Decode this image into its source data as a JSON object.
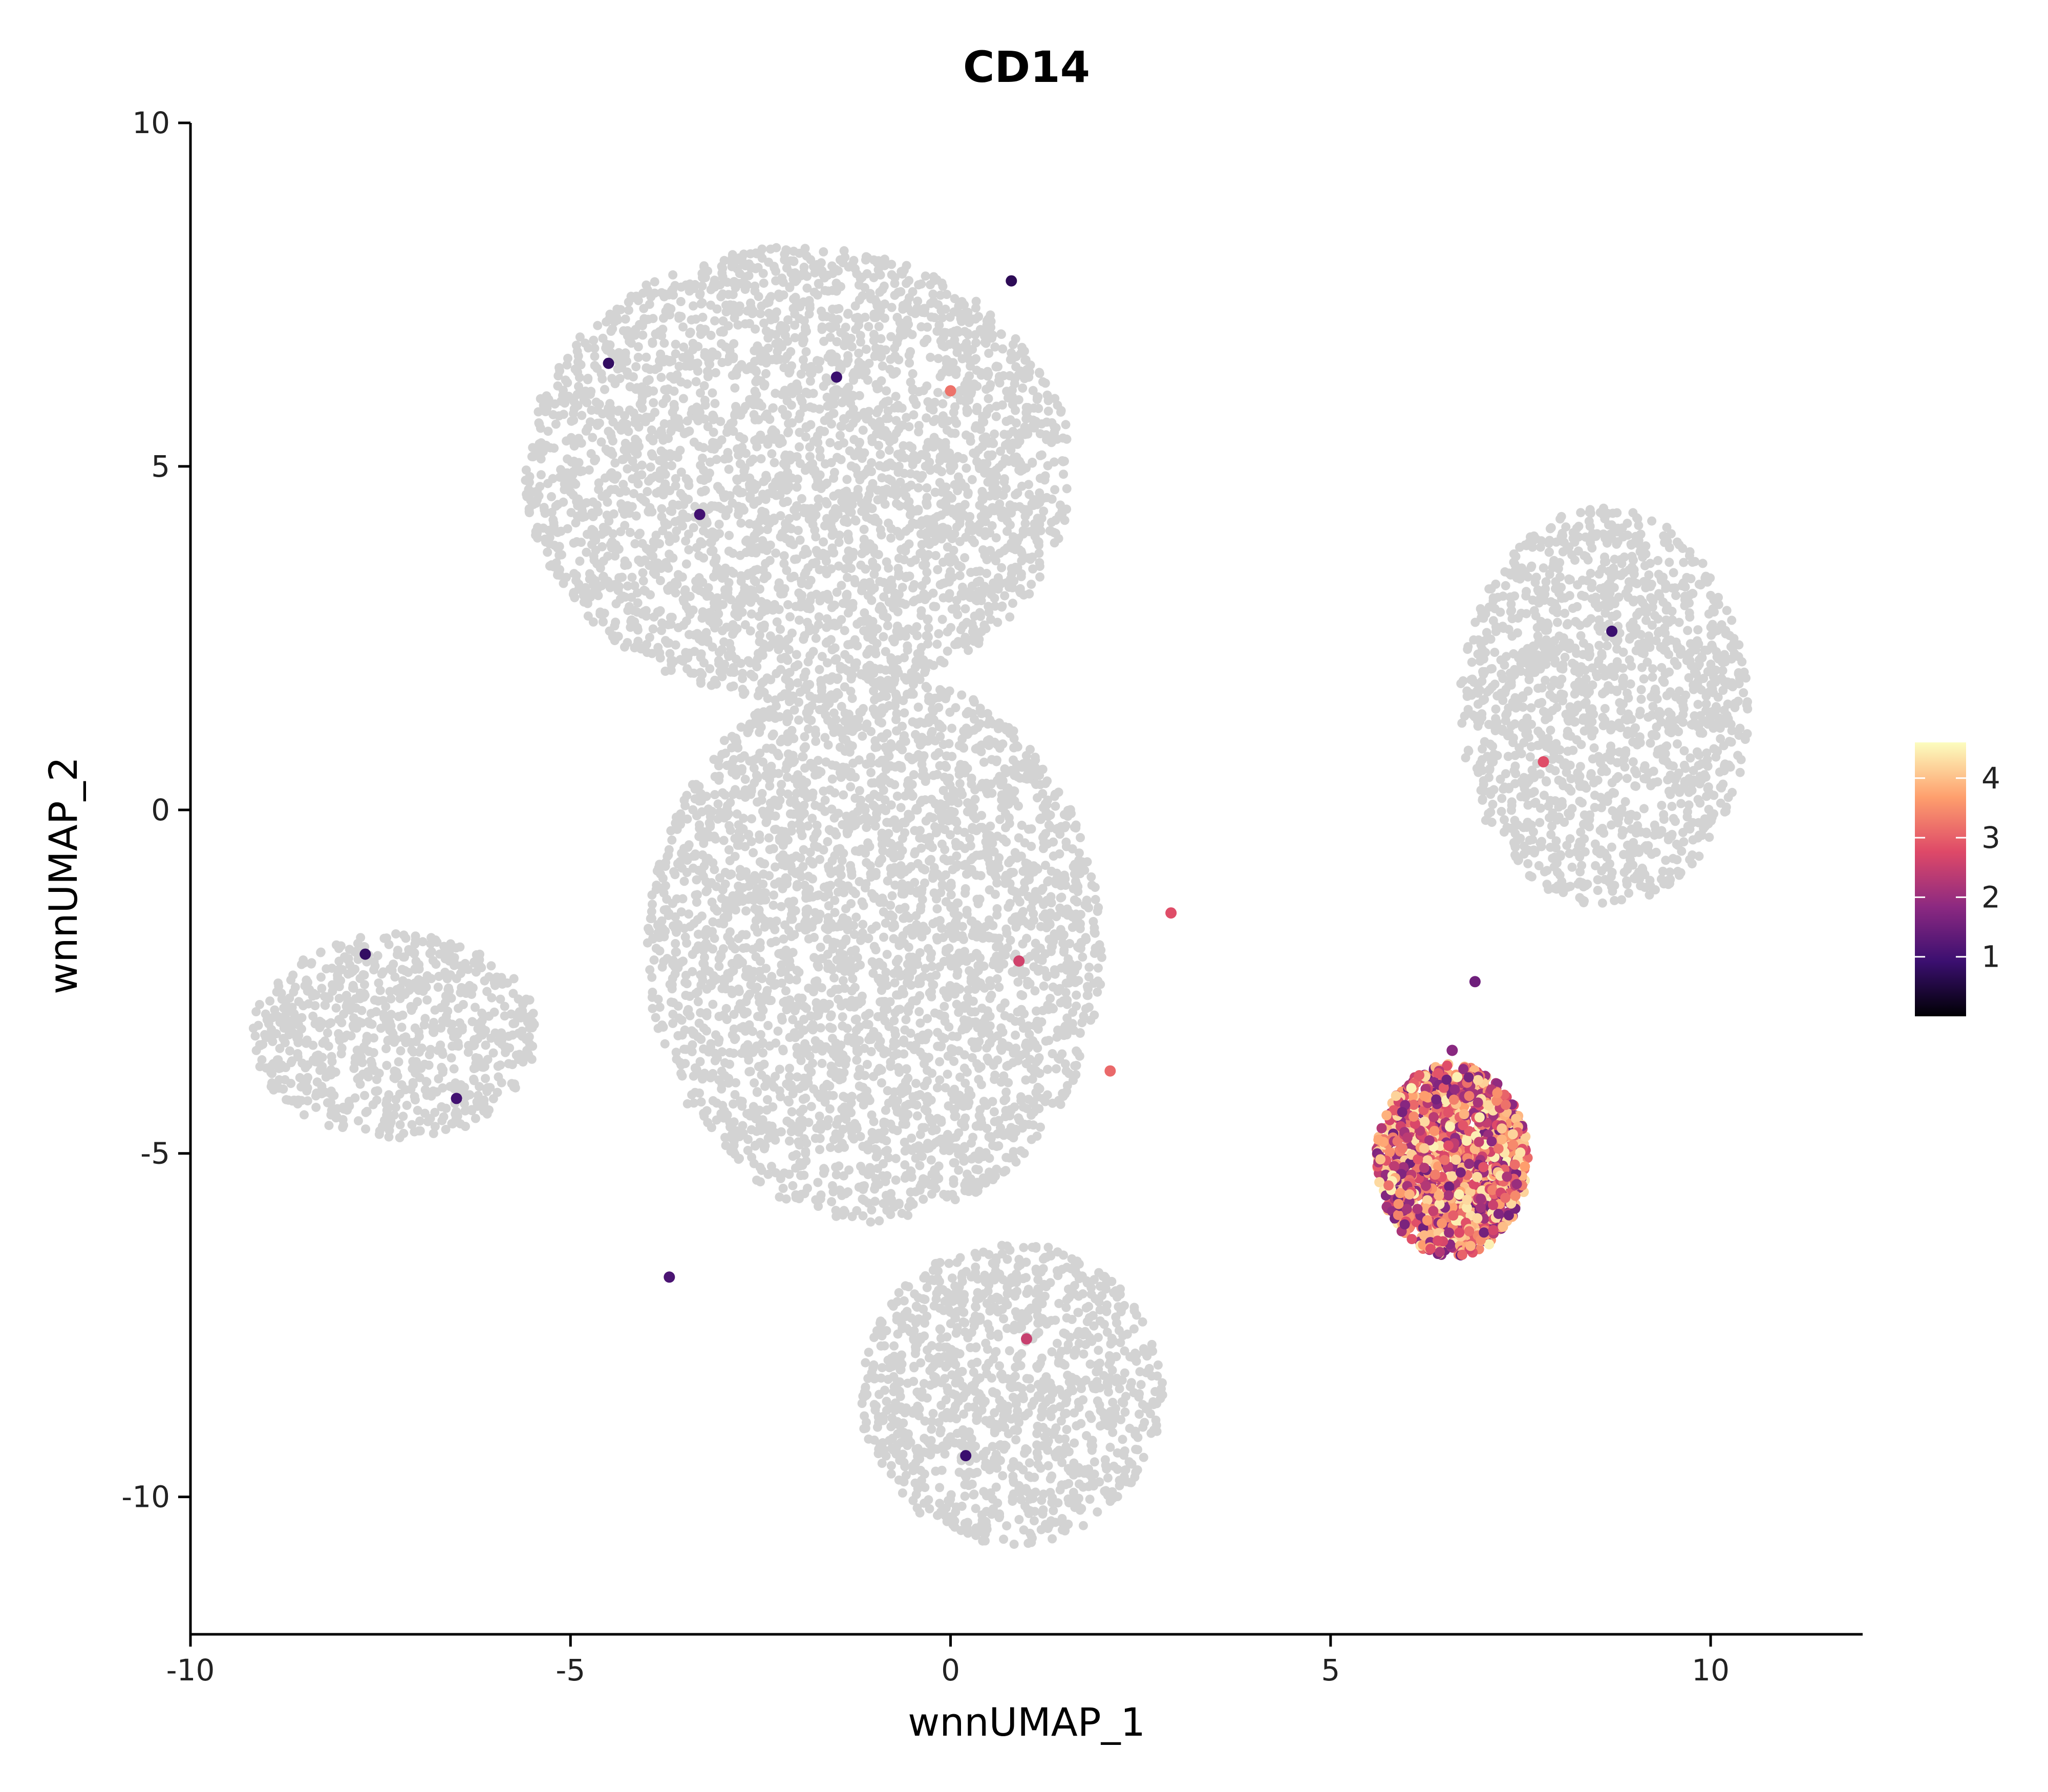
{
  "chart_data": {
    "type": "scatter",
    "title": "CD14",
    "xlabel": "wnnUMAP_1",
    "ylabel": "wnnUMAP_2",
    "xlim": [
      -10,
      12
    ],
    "ylim": [
      -12,
      10
    ],
    "x_ticks": [
      "-10",
      "-5",
      "0",
      "5",
      "10"
    ],
    "y_ticks": [
      "10",
      "5",
      "0",
      "-5",
      "-10"
    ],
    "grid": false,
    "background_color": "#d3d3d3",
    "colorbar": {
      "position": "right",
      "range": [
        0,
        4.6
      ],
      "ticks": [
        "4",
        "3",
        "2",
        "1"
      ],
      "colors": [
        "#000004",
        "#3b0f70",
        "#8c2981",
        "#de4968",
        "#fe9f6d",
        "#fcfdbf"
      ]
    },
    "background_regions": [
      {
        "name": "top cluster",
        "cx": -2.0,
        "cy": 4.9,
        "rx": 3.6,
        "ry": 3.3
      },
      {
        "name": "right cluster",
        "cx": 8.6,
        "cy": 1.5,
        "rx": 1.9,
        "ry": 2.9
      },
      {
        "name": "left arm",
        "cx": -7.3,
        "cy": -3.3,
        "rx": 1.9,
        "ry": 1.5
      },
      {
        "name": "bottom cluster",
        "cx": 0.8,
        "cy": -8.5,
        "rx": 2.0,
        "ry": 2.2
      },
      {
        "name": "central web",
        "cx": -1.0,
        "cy": -2.0,
        "rx": 3.0,
        "ry": 4.0
      }
    ],
    "high_expression_cluster": {
      "cx": 6.6,
      "cy": -5.1,
      "rx": 1.0,
      "ry": 1.4,
      "level": 3.0
    },
    "sample_points": [
      {
        "x": -4.5,
        "y": 6.5,
        "value": 0.8
      },
      {
        "x": -3.3,
        "y": 4.3,
        "value": 1.0
      },
      {
        "x": -1.5,
        "y": 6.3,
        "value": 0.9
      },
      {
        "x": 0.0,
        "y": 6.1,
        "value": 3.2
      },
      {
        "x": 0.8,
        "y": 7.7,
        "value": 0.7
      },
      {
        "x": 7.8,
        "y": 0.7,
        "value": 2.8
      },
      {
        "x": 8.7,
        "y": 2.6,
        "value": 0.9
      },
      {
        "x": -7.7,
        "y": -2.1,
        "value": 0.8
      },
      {
        "x": -6.5,
        "y": -4.2,
        "value": 1.0
      },
      {
        "x": 0.9,
        "y": -2.2,
        "value": 2.6
      },
      {
        "x": 2.9,
        "y": -1.5,
        "value": 2.8
      },
      {
        "x": 2.1,
        "y": -3.8,
        "value": 3.1
      },
      {
        "x": 1.0,
        "y": -7.7,
        "value": 2.5
      },
      {
        "x": 0.2,
        "y": -9.4,
        "value": 0.9
      },
      {
        "x": -3.7,
        "y": -6.8,
        "value": 1.1
      },
      {
        "x": 6.9,
        "y": -2.5,
        "value": 1.5
      },
      {
        "x": 6.6,
        "y": -3.5,
        "value": 1.8
      }
    ]
  }
}
